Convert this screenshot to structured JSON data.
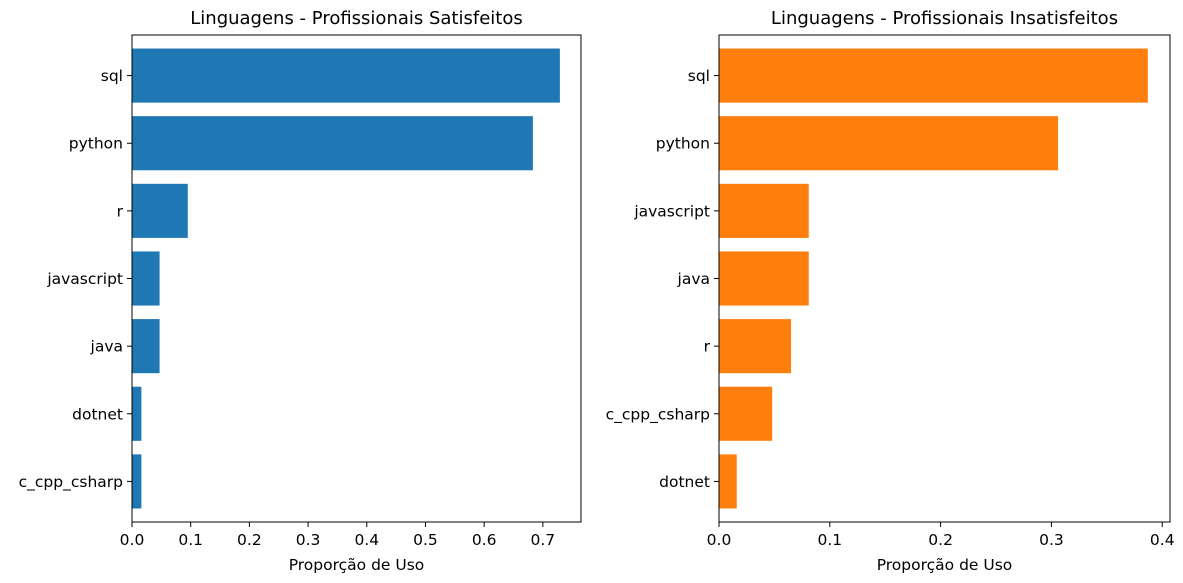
{
  "chart_data": [
    {
      "type": "bar",
      "orientation": "horizontal",
      "title": "Linguagens - Profissionais Satisfeitos",
      "xlabel": "Proporção de Uso",
      "ylabel": "",
      "categories": [
        "sql",
        "python",
        "r",
        "javascript",
        "java",
        "dotnet",
        "c_cpp_csharp"
      ],
      "values": [
        0.729,
        0.683,
        0.095,
        0.047,
        0.047,
        0.016,
        0.016
      ],
      "xlim": [
        0,
        0.765
      ],
      "xticks": [
        0.0,
        0.1,
        0.2,
        0.3,
        0.4,
        0.5,
        0.6,
        0.7
      ],
      "xtick_labels": [
        "0.0",
        "0.1",
        "0.2",
        "0.3",
        "0.4",
        "0.5",
        "0.6",
        "0.7"
      ],
      "color": "#1f77b4",
      "grid": false,
      "legend": "none"
    },
    {
      "type": "bar",
      "orientation": "horizontal",
      "title": "Linguagens - Profissionais Insatisfeitos",
      "xlabel": "Proporção de Uso",
      "ylabel": "",
      "categories": [
        "sql",
        "python",
        "javascript",
        "java",
        "r",
        "c_cpp_csharp",
        "dotnet"
      ],
      "values": [
        0.387,
        0.306,
        0.081,
        0.081,
        0.065,
        0.048,
        0.016
      ],
      "xlim": [
        0,
        0.407
      ],
      "xticks": [
        0.0,
        0.1,
        0.2,
        0.3,
        0.4
      ],
      "xtick_labels": [
        "0.0",
        "0.1",
        "0.2",
        "0.3",
        "0.4"
      ],
      "color": "#ff7f0e",
      "grid": false,
      "legend": "none"
    }
  ]
}
